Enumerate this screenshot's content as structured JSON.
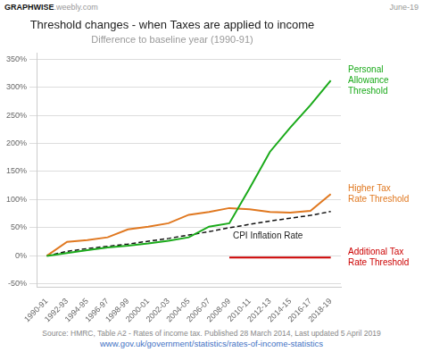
{
  "chart_data": {
    "type": "line",
    "title": "Threshold changes - when Taxes are applied to income",
    "subtitle": "Difference to baseline year (1990-91)",
    "credit": [
      "GRAPHWISE",
      ".weebly.com"
    ],
    "date": "June-19",
    "source": "Source: HMRC, Table A2 - Rates of income tax. Published 28 March 2014, Last updated 5 April 2019",
    "url": "www.gov.uk/government/statistics/rates-of-income-statistics",
    "categories": [
      "1990-91",
      "1992-93",
      "1994-95",
      "1996-97",
      "1998-99",
      "2000-01",
      "2002-03",
      "2004-05",
      "2006-07",
      "2008-09",
      "2010-11",
      "2012-13",
      "2014-15",
      "2016-17",
      "2018-19"
    ],
    "series": [
      {
        "name": "Personal\nAllowance\nThreshold",
        "color": "#1aaa1a",
        "line_style": "solid",
        "values": [
          0,
          5,
          10,
          15,
          18,
          22,
          27,
          33,
          52,
          58,
          120,
          185,
          228,
          268,
          312
        ]
      },
      {
        "name": "Higher Tax\nRate Threshold",
        "color": "#e07820",
        "line_style": "solid",
        "values": [
          0,
          25,
          28,
          33,
          47,
          52,
          58,
          73,
          78,
          85,
          83,
          78,
          77,
          80,
          110
        ]
      },
      {
        "name": "CPI Inflation Rate",
        "color": "#111111",
        "line_style": "dashed",
        "values": [
          0,
          8,
          13,
          17,
          21,
          26,
          31,
          37,
          43,
          50,
          56,
          62,
          67,
          72,
          79
        ]
      },
      {
        "name": "Additional Tax\nRate Threshold",
        "color": "#cc0000",
        "line_style": "solid",
        "values": [
          null,
          null,
          null,
          null,
          null,
          null,
          null,
          null,
          null,
          -3,
          -3,
          -3,
          -3,
          -3,
          -3
        ]
      }
    ],
    "ylim": [
      -55,
      360
    ],
    "yticks": [
      {
        "value": -50,
        "label": "-50%"
      },
      {
        "value": 0,
        "label": "0%"
      },
      {
        "value": 50,
        "label": "50%"
      },
      {
        "value": 100,
        "label": "100%"
      },
      {
        "value": 150,
        "label": "150%"
      },
      {
        "value": 200,
        "label": "200%"
      },
      {
        "value": 250,
        "label": "250%"
      },
      {
        "value": 300,
        "label": "300%"
      },
      {
        "value": 350,
        "label": "350%"
      }
    ],
    "grid": true
  }
}
